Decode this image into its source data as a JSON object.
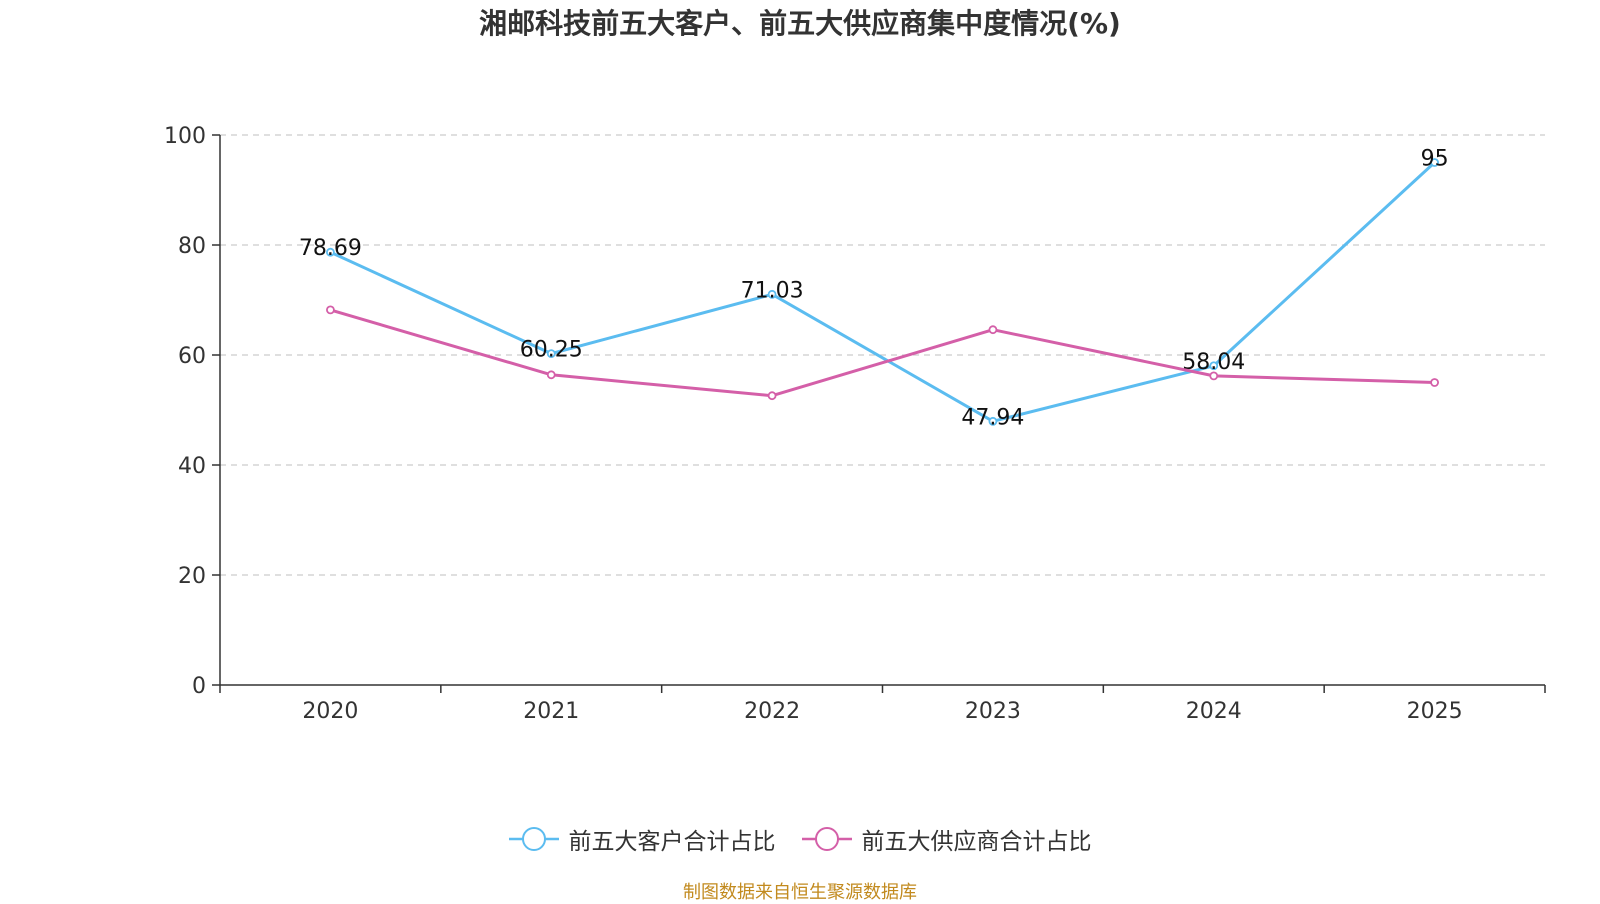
{
  "chart_data": {
    "type": "line",
    "title": "湘邮科技前五大客户、前五大供应商集中度情况(%)",
    "categories": [
      "2020",
      "2021",
      "2022",
      "2023",
      "2024",
      "2025"
    ],
    "ylim": [
      0,
      100
    ],
    "yticks": [
      0,
      20,
      40,
      60,
      80,
      100
    ],
    "grid": true,
    "legend_position": "bottom-center",
    "series": [
      {
        "name": "前五大客户合计占比",
        "color": "#5bbcf0",
        "values": [
          78.69,
          60.25,
          71.03,
          47.94,
          58.04,
          95
        ],
        "labels": [
          "78.69",
          "60.25",
          "71.03",
          "47.94",
          "58.04",
          "95"
        ]
      },
      {
        "name": "前五大供应商合计占比",
        "color": "#d45fa8",
        "values": [
          68.2,
          56.4,
          52.6,
          64.6,
          56.2,
          55.0
        ],
        "labels": null
      }
    ]
  },
  "source_text": "制图数据来自恒生聚源数据库"
}
